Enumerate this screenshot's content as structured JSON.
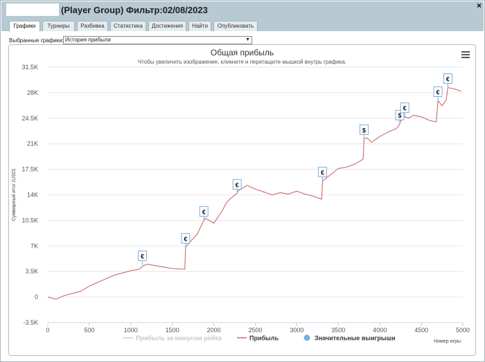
{
  "window": {
    "title": "(Player Group) Фильтр:02/08/2023",
    "close_label": "×"
  },
  "tabs": [
    {
      "label": "Графики",
      "active": true
    },
    {
      "label": "Турниры",
      "active": false
    },
    {
      "label": "Разбивка",
      "active": false
    },
    {
      "label": "Статистика",
      "active": false
    },
    {
      "label": "Достижения",
      "active": false
    },
    {
      "label": "Найти",
      "active": false
    },
    {
      "label": "Опубликовать",
      "active": false
    }
  ],
  "selector": {
    "label": "Выбранные графики:",
    "value": "История прибыли"
  },
  "chart_data": {
    "type": "line",
    "title": "Общая прибыль",
    "subtitle": "Чтобы увеличить изображение, кликните и перетащите мышкой внутрь графика.",
    "ylabel": "Суммарный итог (USD)",
    "xlabel": "Номер игры",
    "xlim": [
      0,
      5000
    ],
    "ylim": [
      -3500,
      31500
    ],
    "x_ticks": [
      "0",
      "500",
      "1000",
      "1500",
      "2000",
      "2500",
      "3000",
      "3500",
      "4000",
      "4500",
      "5000"
    ],
    "y_ticks": [
      "-3.5K",
      "0",
      "3.5K",
      "7K",
      "10.5K",
      "14K",
      "17.5K",
      "21K",
      "24.5K",
      "28K",
      "31.5K"
    ],
    "grid": true,
    "legend_position": "bottom",
    "series": [
      {
        "name": "Прибыль",
        "color": "#c96a6a",
        "x": [
          0,
          100,
          200,
          300,
          400,
          500,
          600,
          700,
          800,
          900,
          1000,
          1100,
          1150,
          1200,
          1300,
          1400,
          1500,
          1650,
          1660,
          1700,
          1800,
          1880,
          1900,
          2000,
          2100,
          2150,
          2200,
          2280,
          2290,
          2400,
          2500,
          2600,
          2700,
          2800,
          2900,
          3000,
          3100,
          3200,
          3300,
          3310,
          3400,
          3500,
          3600,
          3700,
          3800,
          3810,
          3850,
          3900,
          4000,
          4100,
          4200,
          4240,
          4250,
          4300,
          4350,
          4400,
          4500,
          4600,
          4680,
          4700,
          4750,
          4800,
          4820,
          4900,
          4980
        ],
        "values": [
          0,
          -300,
          200,
          500,
          800,
          1500,
          2000,
          2500,
          3000,
          3300,
          3600,
          3800,
          4300,
          4500,
          4300,
          4100,
          3900,
          3800,
          6800,
          7400,
          8600,
          10500,
          10800,
          10100,
          11800,
          12900,
          13500,
          14200,
          14500,
          15300,
          14800,
          14400,
          14000,
          14300,
          14100,
          14500,
          14100,
          13800,
          13400,
          15900,
          16700,
          17600,
          17800,
          18200,
          18900,
          21700,
          21800,
          21200,
          22000,
          22600,
          23100,
          23700,
          24100,
          24700,
          24500,
          24900,
          24700,
          24200,
          24000,
          26900,
          26200,
          27000,
          28700,
          28500,
          28200
        ]
      },
      {
        "name": "Прибыль за минусом рейка",
        "color": "#cccccc",
        "x": [],
        "values": []
      }
    ],
    "markers": [
      {
        "x": 1140,
        "y": 4400,
        "symbol": "€"
      },
      {
        "x": 1660,
        "y": 6800,
        "symbol": "€"
      },
      {
        "x": 1880,
        "y": 10500,
        "symbol": "€"
      },
      {
        "x": 2280,
        "y": 14200,
        "symbol": "€"
      },
      {
        "x": 3310,
        "y": 15900,
        "symbol": "€"
      },
      {
        "x": 3810,
        "y": 21700,
        "symbol": "$"
      },
      {
        "x": 4240,
        "y": 23700,
        "symbol": "$"
      },
      {
        "x": 4300,
        "y": 24700,
        "symbol": "€"
      },
      {
        "x": 4700,
        "y": 26900,
        "symbol": "€"
      },
      {
        "x": 4820,
        "y": 28700,
        "symbol": "€"
      }
    ],
    "legend": [
      {
        "label": "Прибыль за минусом рейка",
        "color": "#cccccc",
        "kind": "line",
        "muted": true
      },
      {
        "label": "Прибыль",
        "color": "#c96a6a",
        "kind": "line",
        "muted": false
      },
      {
        "label": "Значительные выигрыши",
        "color": "#7aaee6",
        "kind": "circle",
        "muted": false
      }
    ]
  }
}
